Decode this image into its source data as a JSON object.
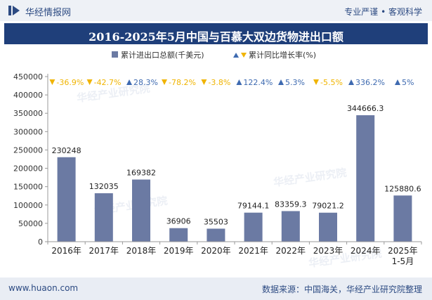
{
  "header": {
    "brand": "华经情报网",
    "tagline": "专业严谨 • 客观科学"
  },
  "title": "2016-2025年5月中国与百慕大双边货物进出口额",
  "footer": {
    "website": "www.huaon.com",
    "source": "数据来源：中国海关，华经产业研究院整理"
  },
  "watermark": "华经产业研究院",
  "colors": {
    "bar": "#6b7aa3",
    "up": "#3e6ab0",
    "down": "#f0b400",
    "title_bg": "#1f3f7a"
  },
  "chart_data": {
    "type": "bar",
    "categories": [
      "2016年",
      "2017年",
      "2018年",
      "2019年",
      "2020年",
      "2021年",
      "2022年",
      "2023年",
      "2024年",
      "2025年\n1-5月"
    ],
    "series": [
      {
        "name": "累计进出口总额(千美元)",
        "values": [
          230248,
          132035,
          169382,
          36906,
          35503,
          79144.1,
          83359.3,
          79021.2,
          344666.3,
          125880.6
        ],
        "labels": [
          "230248",
          "132035",
          "169382",
          "36906",
          "35503",
          "79144.1",
          "83359.3",
          "79021.2",
          "344666.3",
          "125880.6"
        ]
      },
      {
        "name": "累计同比增长率(%)",
        "values": [
          -36.9,
          -42.7,
          28.3,
          -78.2,
          -3.8,
          122.4,
          5.3,
          -5.5,
          336.2,
          5
        ],
        "labels": [
          "-36.9%",
          "-42.7%",
          "28.3%",
          "-78.2%",
          "-3.8%",
          "122.4%",
          "5.3%",
          "-5.5%",
          "336.2%",
          "5%"
        ]
      }
    ],
    "ylim": [
      0,
      450000
    ],
    "yticks": [
      "0",
      "50000",
      "100000",
      "150000",
      "200000",
      "250000",
      "300000",
      "350000",
      "400000",
      "450000"
    ],
    "legend_position": "top-center",
    "grid": false
  }
}
